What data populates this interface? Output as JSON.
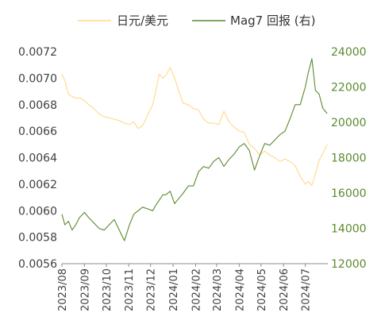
{
  "chart_data": {
    "type": "line",
    "legend_position": "top",
    "grid": false,
    "x_ticks": [
      "2023/08",
      "2023/09",
      "2023/10",
      "2023/11",
      "2023/12",
      "2024/01",
      "2024/02",
      "2024/03",
      "2024/04",
      "2024/05",
      "2024/06",
      "2024/07"
    ],
    "y_left": {
      "ticks": [
        "0.0056",
        "0.0058",
        "0.0060",
        "0.0062",
        "0.0064",
        "0.0066",
        "0.0068",
        "0.0070",
        "0.0072"
      ],
      "ylim": [
        0.0056,
        0.0072
      ]
    },
    "y_right": {
      "ticks": [
        "12000",
        "14000",
        "16000",
        "18000",
        "20000",
        "22000",
        "24000"
      ],
      "ylim": [
        12000,
        24000
      ]
    },
    "series": [
      {
        "name": "日元/美元",
        "axis": "left",
        "color": "#ffd98a",
        "points": [
          [
            "2023-08-01",
            0.00703
          ],
          [
            "2023-08-05",
            0.00698
          ],
          [
            "2023-08-10",
            0.00688
          ],
          [
            "2023-08-15",
            0.00686
          ],
          [
            "2023-08-20",
            0.00685
          ],
          [
            "2023-08-25",
            0.00685
          ],
          [
            "2023-09-01",
            0.00683
          ],
          [
            "2023-09-07",
            0.0068
          ],
          [
            "2023-09-14",
            0.00677
          ],
          [
            "2023-09-21",
            0.00673
          ],
          [
            "2023-09-28",
            0.00671
          ],
          [
            "2023-10-05",
            0.0067
          ],
          [
            "2023-10-12",
            0.00669
          ],
          [
            "2023-10-19",
            0.00668
          ],
          [
            "2023-10-26",
            0.00666
          ],
          [
            "2023-11-02",
            0.00665
          ],
          [
            "2023-11-08",
            0.00667
          ],
          [
            "2023-11-14",
            0.00662
          ],
          [
            "2023-11-20",
            0.00664
          ],
          [
            "2023-11-27",
            0.00672
          ],
          [
            "2023-12-04",
            0.0068
          ],
          [
            "2023-12-08",
            0.0069
          ],
          [
            "2023-12-13",
            0.00703
          ],
          [
            "2023-12-18",
            0.007
          ],
          [
            "2023-12-22",
            0.00702
          ],
          [
            "2023-12-28",
            0.00708
          ],
          [
            "2024-01-03",
            0.007
          ],
          [
            "2024-01-09",
            0.0069
          ],
          [
            "2024-01-15",
            0.00681
          ],
          [
            "2024-01-22",
            0.0068
          ],
          [
            "2024-01-29",
            0.00677
          ],
          [
            "2024-02-05",
            0.00676
          ],
          [
            "2024-02-12",
            0.00669
          ],
          [
            "2024-02-19",
            0.00666
          ],
          [
            "2024-02-26",
            0.00666
          ],
          [
            "2024-03-04",
            0.00665
          ],
          [
            "2024-03-11",
            0.00675
          ],
          [
            "2024-03-18",
            0.00667
          ],
          [
            "2024-03-25",
            0.00663
          ],
          [
            "2024-04-01",
            0.0066
          ],
          [
            "2024-04-08",
            0.00659
          ],
          [
            "2024-04-15",
            0.0065
          ],
          [
            "2024-04-22",
            0.00647
          ],
          [
            "2024-04-29",
            0.00642
          ],
          [
            "2024-05-06",
            0.00645
          ],
          [
            "2024-05-13",
            0.00642
          ],
          [
            "2024-05-20",
            0.0064
          ],
          [
            "2024-05-27",
            0.00637
          ],
          [
            "2024-06-03",
            0.00639
          ],
          [
            "2024-06-10",
            0.00637
          ],
          [
            "2024-06-17",
            0.00634
          ],
          [
            "2024-06-24",
            0.00626
          ],
          [
            "2024-07-01",
            0.0062
          ],
          [
            "2024-07-05",
            0.00622
          ],
          [
            "2024-07-10",
            0.00619
          ],
          [
            "2024-07-15",
            0.00628
          ],
          [
            "2024-07-20",
            0.00638
          ],
          [
            "2024-07-25",
            0.00643
          ],
          [
            "2024-07-31",
            0.0065
          ]
        ]
      },
      {
        "name": "Mag7 回报 (右)",
        "axis": "right",
        "color": "#5a8a2e",
        "points": [
          [
            "2023-08-01",
            14800
          ],
          [
            "2023-08-05",
            14200
          ],
          [
            "2023-08-10",
            14400
          ],
          [
            "2023-08-15",
            13900
          ],
          [
            "2023-08-20",
            14200
          ],
          [
            "2023-08-25",
            14600
          ],
          [
            "2023-09-01",
            14900
          ],
          [
            "2023-09-07",
            14600
          ],
          [
            "2023-09-14",
            14300
          ],
          [
            "2023-09-21",
            14000
          ],
          [
            "2023-09-28",
            13900
          ],
          [
            "2023-10-05",
            14200
          ],
          [
            "2023-10-12",
            14500
          ],
          [
            "2023-10-19",
            13900
          ],
          [
            "2023-10-26",
            13300
          ],
          [
            "2023-11-02",
            14200
          ],
          [
            "2023-11-08",
            14800
          ],
          [
            "2023-11-14",
            15000
          ],
          [
            "2023-11-20",
            15200
          ],
          [
            "2023-11-27",
            15100
          ],
          [
            "2023-12-04",
            15000
          ],
          [
            "2023-12-08",
            15300
          ],
          [
            "2023-12-13",
            15600
          ],
          [
            "2023-12-18",
            15900
          ],
          [
            "2023-12-22",
            15900
          ],
          [
            "2023-12-28",
            16100
          ],
          [
            "2024-01-03",
            15400
          ],
          [
            "2024-01-09",
            15700
          ],
          [
            "2024-01-15",
            16000
          ],
          [
            "2024-01-22",
            16400
          ],
          [
            "2024-01-29",
            16400
          ],
          [
            "2024-02-05",
            17200
          ],
          [
            "2024-02-12",
            17500
          ],
          [
            "2024-02-19",
            17400
          ],
          [
            "2024-02-26",
            17800
          ],
          [
            "2024-03-04",
            18000
          ],
          [
            "2024-03-11",
            17500
          ],
          [
            "2024-03-18",
            17900
          ],
          [
            "2024-03-25",
            18200
          ],
          [
            "2024-04-01",
            18600
          ],
          [
            "2024-04-08",
            18800
          ],
          [
            "2024-04-15",
            18400
          ],
          [
            "2024-04-22",
            17300
          ],
          [
            "2024-04-29",
            18100
          ],
          [
            "2024-05-06",
            18800
          ],
          [
            "2024-05-13",
            18700
          ],
          [
            "2024-05-20",
            19000
          ],
          [
            "2024-05-27",
            19300
          ],
          [
            "2024-06-03",
            19500
          ],
          [
            "2024-06-10",
            20200
          ],
          [
            "2024-06-17",
            21000
          ],
          [
            "2024-06-24",
            21000
          ],
          [
            "2024-07-01",
            22000
          ],
          [
            "2024-07-05",
            22800
          ],
          [
            "2024-07-10",
            23600
          ],
          [
            "2024-07-15",
            21800
          ],
          [
            "2024-07-20",
            21600
          ],
          [
            "2024-07-25",
            20800
          ],
          [
            "2024-07-31",
            20500
          ]
        ]
      }
    ]
  }
}
